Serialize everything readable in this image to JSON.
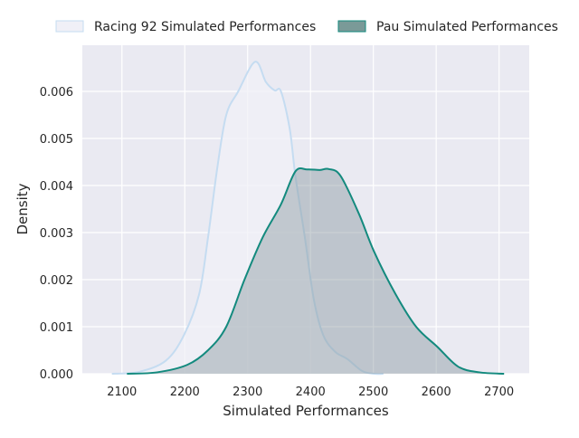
{
  "chart_data": {
    "type": "area",
    "title": "",
    "xlabel": "Simulated Performances",
    "ylabel": "Density",
    "xlim": [
      2037,
      2748
    ],
    "ylim": [
      0,
      0.00698
    ],
    "grid": true,
    "legend_position": "top",
    "x_ticks": [
      2100,
      2200,
      2300,
      2400,
      2500,
      2600,
      2700
    ],
    "x_tick_labels": [
      "2100",
      "2200",
      "2300",
      "2400",
      "2500",
      "2600",
      "2700"
    ],
    "y_ticks": [
      0,
      0.001,
      0.002,
      0.003,
      0.004,
      0.005,
      0.006
    ],
    "y_tick_labels": [
      "0.000",
      "0.001",
      "0.002",
      "0.003",
      "0.004",
      "0.005",
      "0.006"
    ],
    "series": [
      {
        "name": "Racing 92 Simulated Performances",
        "line_color": "#c5dcf1",
        "fill_color": "#f0f0f7",
        "fill_opacity": 0.75,
        "x": [
          2084,
          2127,
          2170,
          2199,
          2223,
          2237,
          2252,
          2266,
          2285,
          2312,
          2329,
          2343,
          2353,
          2367,
          2376,
          2391,
          2405,
          2420,
          2439,
          2459,
          2482,
          2501,
          2516
        ],
        "y": [
          0,
          4e-05,
          0.00028,
          0.00083,
          0.0017,
          0.0029,
          0.0044,
          0.0055,
          0.006,
          0.00663,
          0.0062,
          0.00602,
          0.006,
          0.0052,
          0.0042,
          0.0029,
          0.0016,
          0.00083,
          0.00047,
          0.00031,
          6e-05,
          0,
          0
        ]
      },
      {
        "name": "Pau Simulated Performances",
        "line_color": "#138a7e",
        "fill_color": "#8a9aa0",
        "fill_opacity": 0.45,
        "x": [
          2108,
          2156,
          2204,
          2237,
          2266,
          2295,
          2324,
          2353,
          2376,
          2395,
          2415,
          2429,
          2448,
          2477,
          2501,
          2535,
          2568,
          2602,
          2635,
          2669,
          2708
        ],
        "y": [
          0,
          3e-05,
          0.00019,
          0.0005,
          0.001,
          0.002,
          0.0029,
          0.0036,
          0.0043,
          0.00434,
          0.00433,
          0.00435,
          0.0042,
          0.0034,
          0.0026,
          0.0017,
          0.001,
          0.00057,
          0.00015,
          3e-05,
          0
        ]
      }
    ]
  }
}
